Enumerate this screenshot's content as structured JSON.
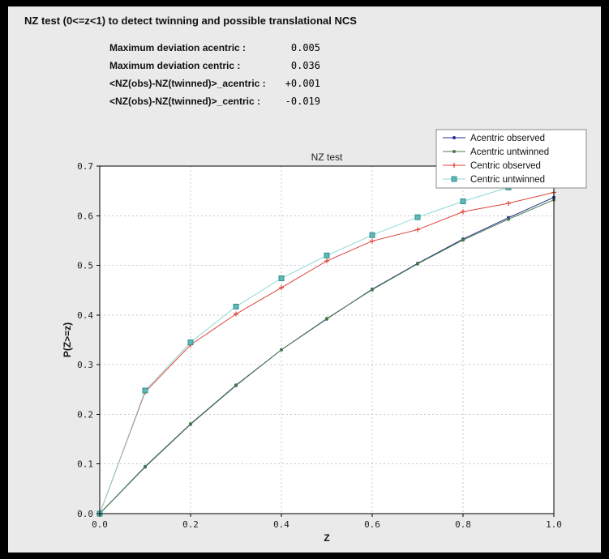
{
  "window": {
    "border_color": "#000000",
    "panel_bg": "#eaeaea"
  },
  "header": {
    "title": "NZ test (0<=z<1) to detect twinning and possible translational NCS"
  },
  "stats": [
    {
      "label": "Maximum deviation acentric :",
      "value": "0.005"
    },
    {
      "label": "Maximum deviation centric :",
      "value": "0.036"
    },
    {
      "label": "<NZ(obs)-NZ(twinned)>_acentric :",
      "value": "+0.001"
    },
    {
      "label": "<NZ(obs)-NZ(twinned)>_centric :",
      "value": "-0.019"
    }
  ],
  "chart_data": {
    "type": "line",
    "title": "NZ test",
    "xlabel": "Z",
    "ylabel": "P(Z>=z)",
    "xlim": [
      0.0,
      1.0
    ],
    "ylim": [
      0.0,
      0.7
    ],
    "xticks": [
      0.0,
      0.2,
      0.4,
      0.6,
      0.8,
      1.0
    ],
    "yticks": [
      0.0,
      0.1,
      0.2,
      0.3,
      0.4,
      0.5,
      0.6,
      0.7
    ],
    "grid": true,
    "grid_color": "#c9c9c9",
    "plot_bg": "#ffffff",
    "legend_position": "upper-right",
    "x": [
      0.0,
      0.1,
      0.2,
      0.3,
      0.4,
      0.5,
      0.6,
      0.7,
      0.8,
      0.9,
      1.0
    ],
    "series": [
      {
        "name": "Acentric observed",
        "color": "#27338e",
        "marker": "dot",
        "values": [
          0.0,
          0.094,
          0.18,
          0.258,
          0.33,
          0.392,
          0.452,
          0.504,
          0.553,
          0.596,
          0.637
        ]
      },
      {
        "name": "Acentric untwinned",
        "color": "#4a7b4a",
        "marker": "dot",
        "values": [
          0.0,
          0.095,
          0.181,
          0.259,
          0.33,
          0.393,
          0.451,
          0.503,
          0.551,
          0.593,
          0.632
        ]
      },
      {
        "name": "Centric observed",
        "color": "#dd4139",
        "marker": "plus",
        "values": [
          0.0,
          0.245,
          0.34,
          0.402,
          0.455,
          0.509,
          0.549,
          0.572,
          0.608,
          0.625,
          0.647
        ]
      },
      {
        "name": "Centric untwinned",
        "color": "#8ed8d8",
        "marker": "square",
        "marker_fill": "#5fb8b8",
        "marker_edge": "#338f8f",
        "values": [
          0.0,
          0.248,
          0.345,
          0.417,
          0.474,
          0.52,
          0.561,
          0.597,
          0.629,
          0.657,
          0.683
        ]
      }
    ]
  }
}
